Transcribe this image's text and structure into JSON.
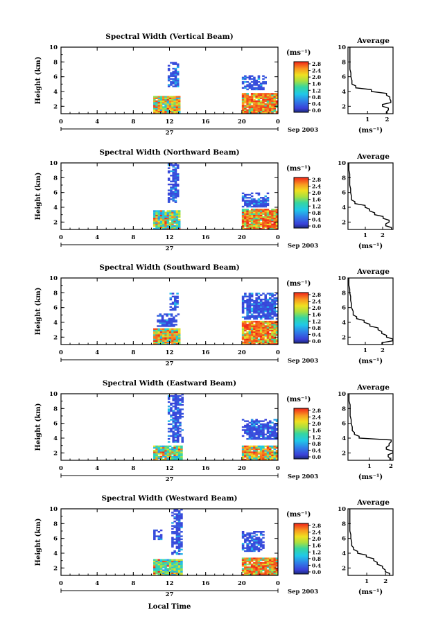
{
  "figure": {
    "time_axis_label": "Local Time",
    "day_label": "27",
    "month_label": "Sep 2003",
    "x_ticks": [
      "0",
      "4",
      "8",
      "12",
      "16",
      "20",
      "0"
    ],
    "y_ticks": [
      "2",
      "4",
      "6",
      "8",
      "10"
    ],
    "y_axis_label": "Height (km)",
    "colorbar_unit": "(ms⁻¹)",
    "colorbar_ticks": [
      "0.0",
      "0.4",
      "0.8",
      "1.2",
      "1.6",
      "2.0",
      "2.4",
      "2.8"
    ],
    "average_title": "Average",
    "average_unit": "(ms⁻¹)"
  },
  "chart_data": [
    {
      "type": "heatmap",
      "title": "Spectral Width (Vertical Beam)",
      "xlabel": "",
      "ylabel": "Height (km)",
      "xlim": [
        0,
        24
      ],
      "ylim": [
        1,
        10
      ],
      "zlim": [
        0.0,
        2.8
      ],
      "blocks": [
        {
          "t0": 10.2,
          "t1": 13.0,
          "h0": 1.0,
          "h1": 3.4,
          "level": "mixed-high"
        },
        {
          "t0": 11.8,
          "t1": 13.0,
          "h0": 4.6,
          "h1": 8.0,
          "level": "low"
        },
        {
          "t0": 20.0,
          "t1": 24.0,
          "h0": 1.0,
          "h1": 3.8,
          "level": "high"
        },
        {
          "t0": 20.0,
          "t1": 22.6,
          "h0": 4.2,
          "h1": 6.2,
          "level": "low"
        }
      ],
      "average": {
        "xticks": [
          "1",
          "2"
        ],
        "xlim": [
          0,
          2.3
        ],
        "height": [
          1.0,
          1.5,
          2.0,
          2.5,
          3.0,
          3.5,
          4.0,
          4.5,
          5.0,
          6.0,
          7.0,
          8.0,
          9.0,
          10.0
        ],
        "width": [
          2.0,
          2.1,
          1.8,
          2.2,
          2.1,
          2.0,
          1.2,
          0.4,
          0.2,
          0.15,
          0.1,
          0.1,
          0.1,
          0.1
        ]
      }
    },
    {
      "type": "heatmap",
      "title": "Spectral Width (Northward Beam)",
      "xlabel": "",
      "ylabel": "Height (km)",
      "xlim": [
        0,
        24
      ],
      "ylim": [
        1,
        10
      ],
      "zlim": [
        0.0,
        2.8
      ],
      "blocks": [
        {
          "t0": 10.2,
          "t1": 13.0,
          "h0": 1.0,
          "h1": 3.6,
          "level": "mixed-mid"
        },
        {
          "t0": 11.8,
          "t1": 13.0,
          "h0": 4.6,
          "h1": 10.0,
          "level": "low"
        },
        {
          "t0": 20.0,
          "t1": 24.0,
          "h0": 1.0,
          "h1": 3.8,
          "level": "high"
        },
        {
          "t0": 20.0,
          "t1": 23.0,
          "h0": 4.0,
          "h1": 6.0,
          "level": "low"
        }
      ],
      "average": {
        "xticks": [
          "1",
          "2"
        ],
        "xlim": [
          0,
          2.6
        ],
        "height": [
          1.0,
          1.5,
          2.0,
          2.5,
          3.0,
          3.5,
          4.0,
          4.5,
          5.0,
          6.0,
          7.0,
          8.0,
          9.0,
          10.0
        ],
        "width": [
          2.5,
          2.2,
          2.4,
          2.0,
          1.5,
          1.2,
          1.0,
          0.4,
          0.2,
          0.15,
          0.1,
          0.1,
          0.05,
          0.05
        ]
      }
    },
    {
      "type": "heatmap",
      "title": "Spectral Width (Southward Beam)",
      "xlabel": "",
      "ylabel": "Height (km)",
      "xlim": [
        0,
        24
      ],
      "ylim": [
        1,
        10
      ],
      "zlim": [
        0.0,
        2.8
      ],
      "blocks": [
        {
          "t0": 10.2,
          "t1": 13.0,
          "h0": 1.0,
          "h1": 3.2,
          "level": "mixed-high"
        },
        {
          "t0": 10.6,
          "t1": 13.0,
          "h0": 3.4,
          "h1": 5.2,
          "level": "low"
        },
        {
          "t0": 12.0,
          "t1": 13.0,
          "h0": 5.6,
          "h1": 8.0,
          "level": "low"
        },
        {
          "t0": 20.0,
          "t1": 24.0,
          "h0": 1.0,
          "h1": 4.2,
          "level": "high"
        },
        {
          "t0": 20.0,
          "t1": 24.0,
          "h0": 4.4,
          "h1": 8.0,
          "level": "low"
        }
      ],
      "average": {
        "xticks": [
          "1",
          "2"
        ],
        "xlim": [
          0,
          2.6
        ],
        "height": [
          1.0,
          1.5,
          2.0,
          2.5,
          3.0,
          3.5,
          4.0,
          4.5,
          5.0,
          6.0,
          7.0,
          8.0,
          9.0,
          10.0
        ],
        "width": [
          2.0,
          2.6,
          2.2,
          1.9,
          1.7,
          1.3,
          0.9,
          0.5,
          0.3,
          0.2,
          0.15,
          0.1,
          0.05,
          0.05
        ]
      }
    },
    {
      "type": "heatmap",
      "title": "Spectral Width (Eastward Beam)",
      "xlabel": "",
      "ylabel": "Height (km)",
      "xlim": [
        0,
        24
      ],
      "ylim": [
        1,
        10
      ],
      "zlim": [
        0.0,
        2.8
      ],
      "blocks": [
        {
          "t0": 10.2,
          "t1": 13.4,
          "h0": 1.0,
          "h1": 3.0,
          "level": "mixed-mid"
        },
        {
          "t0": 11.8,
          "t1": 13.4,
          "h0": 3.4,
          "h1": 10.0,
          "level": "low"
        },
        {
          "t0": 20.0,
          "t1": 24.0,
          "h0": 1.0,
          "h1": 3.0,
          "level": "mixed-high"
        },
        {
          "t0": 20.0,
          "t1": 24.0,
          "h0": 3.8,
          "h1": 6.6,
          "level": "low"
        }
      ],
      "average": {
        "xticks": [
          "1",
          "2"
        ],
        "xlim": [
          0,
          2.1
        ],
        "height": [
          1.0,
          1.5,
          2.0,
          2.5,
          3.0,
          3.5,
          4.0,
          4.5,
          5.0,
          6.0,
          7.0,
          8.0,
          9.0,
          10.0
        ],
        "width": [
          2.0,
          1.9,
          2.1,
          1.8,
          1.9,
          2.0,
          0.5,
          0.3,
          0.2,
          0.15,
          0.1,
          0.1,
          0.05,
          0.05
        ]
      }
    },
    {
      "type": "heatmap",
      "title": "Spectral Width (Westward Beam)",
      "xlabel": "Local Time",
      "ylabel": "Height (km)",
      "xlim": [
        0,
        24
      ],
      "ylim": [
        1,
        10
      ],
      "zlim": [
        0.0,
        2.8
      ],
      "blocks": [
        {
          "t0": 10.2,
          "t1": 13.4,
          "h0": 1.0,
          "h1": 3.2,
          "level": "mixed-mid"
        },
        {
          "t0": 12.2,
          "t1": 13.4,
          "h0": 3.8,
          "h1": 10.0,
          "level": "low"
        },
        {
          "t0": 10.2,
          "t1": 11.2,
          "h0": 5.8,
          "h1": 7.2,
          "level": "low"
        },
        {
          "t0": 20.0,
          "t1": 24.0,
          "h0": 1.0,
          "h1": 3.4,
          "level": "high"
        },
        {
          "t0": 20.0,
          "t1": 22.4,
          "h0": 4.2,
          "h1": 7.0,
          "level": "low"
        }
      ],
      "average": {
        "xticks": [
          "1",
          "2"
        ],
        "xlim": [
          0,
          2.4
        ],
        "height": [
          1.0,
          1.5,
          2.0,
          2.5,
          3.0,
          3.5,
          4.0,
          4.5,
          5.0,
          6.0,
          7.0,
          8.0,
          9.0,
          10.0
        ],
        "width": [
          2.2,
          2.0,
          1.8,
          1.6,
          1.4,
          1.0,
          0.5,
          0.3,
          0.2,
          0.15,
          0.1,
          0.1,
          0.1,
          0.1
        ]
      }
    }
  ]
}
